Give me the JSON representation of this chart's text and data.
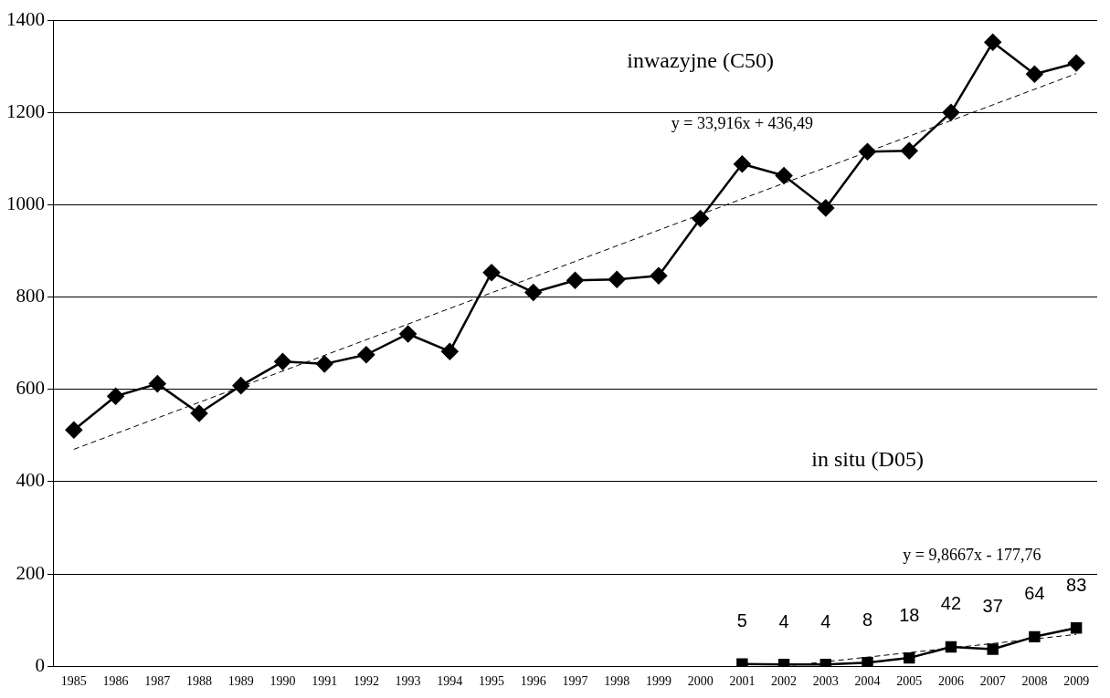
{
  "chart_data": {
    "type": "line",
    "categories": [
      "1985",
      "1986",
      "1987",
      "1988",
      "1989",
      "1990",
      "1991",
      "1992",
      "1993",
      "1994",
      "1995",
      "1996",
      "1997",
      "1998",
      "1999",
      "2000",
      "2001",
      "2002",
      "2003",
      "2004",
      "2005",
      "2006",
      "2007",
      "2008",
      "2009"
    ],
    "ylim": [
      0,
      1400
    ],
    "yticks": [
      0,
      200,
      400,
      600,
      800,
      1000,
      1200,
      1400
    ],
    "grid": "y",
    "legend": false,
    "series": [
      {
        "color": "#000000",
        "marker": "diamond",
        "line_style": "solid",
        "values": [
          512,
          585,
          612,
          548,
          608,
          660,
          655,
          675,
          720,
          682,
          853,
          810,
          836,
          838,
          846,
          970,
          1088,
          1063,
          993,
          1115,
          1117,
          1200,
          1352,
          1283,
          1307
        ]
      },
      {
        "color": "#000000",
        "marker": "square",
        "line_style": "solid",
        "values": [
          null,
          null,
          null,
          null,
          null,
          null,
          null,
          null,
          null,
          null,
          null,
          null,
          null,
          null,
          null,
          null,
          5,
          4,
          4,
          8,
          18,
          42,
          37,
          64,
          83
        ],
        "value_labels": [
          null,
          null,
          null,
          null,
          null,
          null,
          null,
          null,
          null,
          null,
          null,
          null,
          null,
          null,
          null,
          null,
          "5",
          "4",
          "4",
          "8",
          "18",
          "42",
          "37",
          "64",
          "83"
        ]
      },
      {
        "type": "line",
        "color": "#000000",
        "marker": "none",
        "line_style": "dashed",
        "values": [
          470,
          null,
          null,
          null,
          null,
          null,
          null,
          null,
          null,
          null,
          null,
          null,
          null,
          null,
          null,
          null,
          null,
          null,
          null,
          null,
          null,
          null,
          null,
          null,
          1284
        ]
      },
      {
        "type": "line",
        "color": "#000000",
        "marker": "none",
        "line_style": "dashed",
        "values": [
          null,
          null,
          null,
          null,
          null,
          null,
          null,
          null,
          null,
          null,
          null,
          null,
          null,
          null,
          null,
          null,
          null,
          0,
          null,
          null,
          null,
          null,
          null,
          null,
          69
        ]
      }
    ],
    "annotations": [
      "inwazyjne (C50)",
      "y = 33,916x + 436,49",
      "in situ (D05)",
      "y = 9,8667x - 177,76"
    ]
  }
}
